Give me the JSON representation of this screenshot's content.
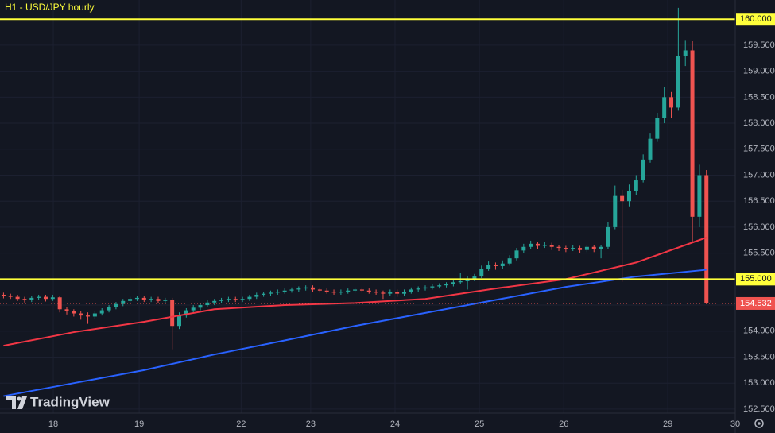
{
  "chart_data": {
    "type": "candlestick",
    "title": "H1 - USD/JPY hourly",
    "brand": "TradingView",
    "up_color": "#26a69a",
    "down_color": "#ef5350",
    "grid": true,
    "xlim": [
      -0.5,
      104.1
    ],
    "ylim": [
      152.04,
      160.37
    ],
    "xticks": [
      {
        "value": 7.08,
        "label": "18"
      },
      {
        "value": 19.3,
        "label": "19"
      },
      {
        "value": 33.8,
        "label": "22"
      },
      {
        "value": 43.7,
        "label": "23"
      },
      {
        "value": 55.7,
        "label": "24"
      },
      {
        "value": 67.7,
        "label": "25"
      },
      {
        "value": 79.7,
        "label": "26"
      },
      {
        "value": 94.5,
        "label": "29"
      },
      {
        "value": 104.1,
        "label": "30"
      }
    ],
    "yticks": [
      {
        "value": 152.5,
        "label": "152.500"
      },
      {
        "value": 153,
        "label": "153.000"
      },
      {
        "value": 153.5,
        "label": "153.500"
      },
      {
        "value": 154,
        "label": "154.000"
      },
      {
        "value": 154.5,
        "label": "154.500"
      },
      {
        "value": 155.5,
        "label": "155.500"
      },
      {
        "value": 156,
        "label": "156.000"
      },
      {
        "value": 156.5,
        "label": "156.500"
      },
      {
        "value": 157,
        "label": "157.000"
      },
      {
        "value": 157.5,
        "label": "157.500"
      },
      {
        "value": 158,
        "label": "158.000"
      },
      {
        "value": 158.5,
        "label": "158.500"
      },
      {
        "value": 159,
        "label": "159.000"
      },
      {
        "value": 159.5,
        "label": "159.500"
      }
    ],
    "levels": [
      {
        "value": 160,
        "label": "160.000",
        "color": "#ffff3b"
      },
      {
        "value": 155,
        "label": "155.000",
        "color": "#ffff3b"
      }
    ],
    "last_price": {
      "value": 154.532,
      "label": "154.532",
      "color": "#ef5350"
    },
    "candles": [
      [
        154.7,
        154.74,
        154.63,
        154.68
      ],
      [
        154.68,
        154.72,
        154.62,
        154.66
      ],
      [
        154.66,
        154.7,
        154.58,
        154.62
      ],
      [
        154.62,
        154.66,
        154.55,
        154.6
      ],
      [
        154.6,
        154.68,
        154.56,
        154.64
      ],
      [
        154.64,
        154.7,
        154.6,
        154.66
      ],
      [
        154.66,
        154.7,
        154.57,
        154.62
      ],
      [
        154.62,
        154.7,
        154.58,
        154.65
      ],
      [
        154.65,
        154.67,
        154.36,
        154.42
      ],
      [
        154.42,
        154.46,
        154.32,
        154.38
      ],
      [
        154.38,
        154.42,
        154.28,
        154.34
      ],
      [
        154.34,
        154.38,
        154.22,
        154.3
      ],
      [
        154.3,
        154.36,
        154.14,
        154.28
      ],
      [
        154.28,
        154.38,
        154.24,
        154.34
      ],
      [
        154.34,
        154.44,
        154.3,
        154.4
      ],
      [
        154.4,
        154.5,
        154.36,
        154.46
      ],
      [
        154.46,
        154.56,
        154.42,
        154.52
      ],
      [
        154.52,
        154.62,
        154.48,
        154.58
      ],
      [
        154.58,
        154.66,
        154.54,
        154.62
      ],
      [
        154.62,
        154.68,
        154.58,
        154.64
      ],
      [
        154.64,
        154.68,
        154.56,
        154.6
      ],
      [
        154.6,
        154.66,
        154.56,
        154.62
      ],
      [
        154.62,
        154.66,
        154.54,
        154.58
      ],
      [
        154.58,
        154.64,
        154.54,
        154.6
      ],
      [
        154.6,
        154.64,
        153.65,
        154.1
      ],
      [
        154.1,
        154.36,
        154.04,
        154.3
      ],
      [
        154.3,
        154.44,
        154.26,
        154.4
      ],
      [
        154.4,
        154.5,
        154.36,
        154.45
      ],
      [
        154.45,
        154.54,
        154.4,
        154.5
      ],
      [
        154.5,
        154.6,
        154.46,
        154.55
      ],
      [
        154.55,
        154.62,
        154.5,
        154.58
      ],
      [
        154.58,
        154.64,
        154.54,
        154.6
      ],
      [
        154.6,
        154.66,
        154.56,
        154.62
      ],
      [
        154.62,
        154.66,
        154.56,
        154.6
      ],
      [
        154.6,
        154.66,
        154.56,
        154.62
      ],
      [
        154.62,
        154.7,
        154.58,
        154.66
      ],
      [
        154.66,
        154.74,
        154.62,
        154.7
      ],
      [
        154.7,
        154.76,
        154.66,
        154.72
      ],
      [
        154.72,
        154.78,
        154.68,
        154.74
      ],
      [
        154.74,
        154.8,
        154.7,
        154.76
      ],
      [
        154.76,
        154.82,
        154.72,
        154.78
      ],
      [
        154.78,
        154.84,
        154.74,
        154.8
      ],
      [
        154.8,
        154.86,
        154.76,
        154.82
      ],
      [
        154.82,
        154.88,
        154.78,
        154.84
      ],
      [
        154.84,
        154.88,
        154.76,
        154.8
      ],
      [
        154.8,
        154.84,
        154.74,
        154.78
      ],
      [
        154.78,
        154.82,
        154.72,
        154.76
      ],
      [
        154.76,
        154.8,
        154.7,
        154.74
      ],
      [
        154.74,
        154.8,
        154.7,
        154.76
      ],
      [
        154.76,
        154.82,
        154.72,
        154.78
      ],
      [
        154.78,
        154.84,
        154.74,
        154.8
      ],
      [
        154.8,
        154.84,
        154.74,
        154.78
      ],
      [
        154.78,
        154.82,
        154.72,
        154.76
      ],
      [
        154.76,
        154.8,
        154.7,
        154.74
      ],
      [
        154.74,
        154.78,
        154.62,
        154.72
      ],
      [
        154.72,
        154.8,
        154.68,
        154.76
      ],
      [
        154.76,
        154.8,
        154.66,
        154.72
      ],
      [
        154.72,
        154.8,
        154.68,
        154.76
      ],
      [
        154.76,
        154.84,
        154.72,
        154.8
      ],
      [
        154.8,
        154.86,
        154.76,
        154.82
      ],
      [
        154.82,
        154.88,
        154.78,
        154.84
      ],
      [
        154.84,
        154.9,
        154.8,
        154.86
      ],
      [
        154.86,
        154.92,
        154.82,
        154.88
      ],
      [
        154.88,
        154.94,
        154.84,
        154.9
      ],
      [
        154.9,
        154.98,
        154.86,
        154.94
      ],
      [
        154.94,
        155.12,
        154.9,
        154.96
      ],
      [
        154.96,
        155.06,
        154.8,
        155.0
      ],
      [
        155.0,
        155.1,
        154.96,
        155.05
      ],
      [
        155.05,
        155.26,
        155.02,
        155.2
      ],
      [
        155.2,
        155.34,
        155.16,
        155.28
      ],
      [
        155.28,
        155.32,
        155.18,
        155.25
      ],
      [
        155.25,
        155.36,
        155.2,
        155.3
      ],
      [
        155.3,
        155.46,
        155.26,
        155.4
      ],
      [
        155.4,
        155.6,
        155.36,
        155.55
      ],
      [
        155.55,
        155.68,
        155.5,
        155.62
      ],
      [
        155.62,
        155.74,
        155.58,
        155.68
      ],
      [
        155.68,
        155.72,
        155.58,
        155.64
      ],
      [
        155.64,
        155.72,
        155.6,
        155.66
      ],
      [
        155.66,
        155.7,
        155.56,
        155.62
      ],
      [
        155.62,
        155.66,
        155.54,
        155.6
      ],
      [
        155.6,
        155.64,
        155.52,
        155.58
      ],
      [
        155.58,
        155.66,
        155.54,
        155.6
      ],
      [
        155.6,
        155.64,
        155.5,
        155.56
      ],
      [
        155.56,
        155.66,
        155.52,
        155.62
      ],
      [
        155.62,
        155.66,
        155.52,
        155.58
      ],
      [
        155.58,
        155.66,
        155.4,
        155.62
      ],
      [
        155.62,
        156.1,
        155.58,
        156.0
      ],
      [
        156.0,
        156.8,
        155.96,
        156.6
      ],
      [
        156.6,
        156.72,
        154.95,
        156.5
      ],
      [
        156.5,
        156.82,
        156.4,
        156.7
      ],
      [
        156.7,
        157.0,
        156.62,
        156.9
      ],
      [
        156.9,
        157.4,
        156.86,
        157.3
      ],
      [
        157.3,
        157.8,
        157.24,
        157.7
      ],
      [
        157.7,
        158.2,
        157.64,
        158.1
      ],
      [
        158.1,
        158.7,
        158.0,
        158.5
      ],
      [
        158.5,
        158.6,
        158.1,
        158.3
      ],
      [
        158.3,
        160.22,
        158.24,
        159.3
      ],
      [
        159.3,
        159.6,
        159.1,
        159.4
      ],
      [
        159.4,
        159.58,
        155.7,
        156.2
      ],
      [
        156.2,
        157.2,
        156.0,
        157.0
      ],
      [
        157.0,
        157.1,
        154.52,
        154.532
      ]
    ],
    "series": [
      {
        "color": "#f23645",
        "x": [
          0,
          10,
          20,
          30,
          40,
          50,
          60,
          70,
          80,
          90,
          100
        ],
        "values": [
          153.72,
          153.98,
          154.18,
          154.42,
          154.5,
          154.54,
          154.62,
          154.82,
          155.0,
          155.32,
          155.8
        ]
      },
      {
        "color": "#2962ff",
        "x": [
          0,
          10,
          20,
          30,
          40,
          50,
          60,
          70,
          80,
          90,
          100
        ],
        "values": [
          152.75,
          153.0,
          153.25,
          153.55,
          153.82,
          154.1,
          154.35,
          154.6,
          154.85,
          155.05,
          155.18
        ]
      }
    ]
  }
}
